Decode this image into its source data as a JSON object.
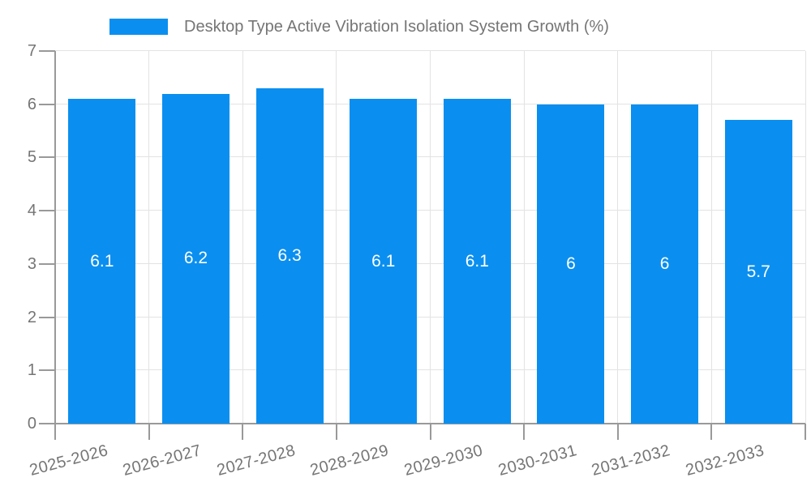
{
  "chart_data": {
    "type": "bar",
    "title": "Desktop Type Active Vibration Isolation System Growth (%)",
    "legend_position": "top",
    "categories": [
      "2025-2026",
      "2026-2027",
      "2027-2028",
      "2028-2029",
      "2029-2030",
      "2030-2031",
      "2031-2032",
      "2032-2033"
    ],
    "values": [
      6.1,
      6.2,
      6.3,
      6.1,
      6.1,
      6,
      6,
      5.7
    ],
    "bar_labels": [
      "6.1",
      "6.2",
      "6.3",
      "6.1",
      "6.1",
      "6",
      "6",
      "5.7"
    ],
    "bar_label_position": "inside-center",
    "xlabel": "",
    "ylabel": "",
    "ylim": [
      0,
      7
    ],
    "yticks": [
      0,
      1,
      2,
      3,
      4,
      5,
      6,
      7
    ],
    "grid": true,
    "colors": {
      "bar": "#0a8ff0",
      "bar_label": "#ffffff",
      "axis_label": "#757575",
      "axis_line": "#999999",
      "gridline": "#e3e3e3",
      "background": "#ffffff"
    }
  }
}
